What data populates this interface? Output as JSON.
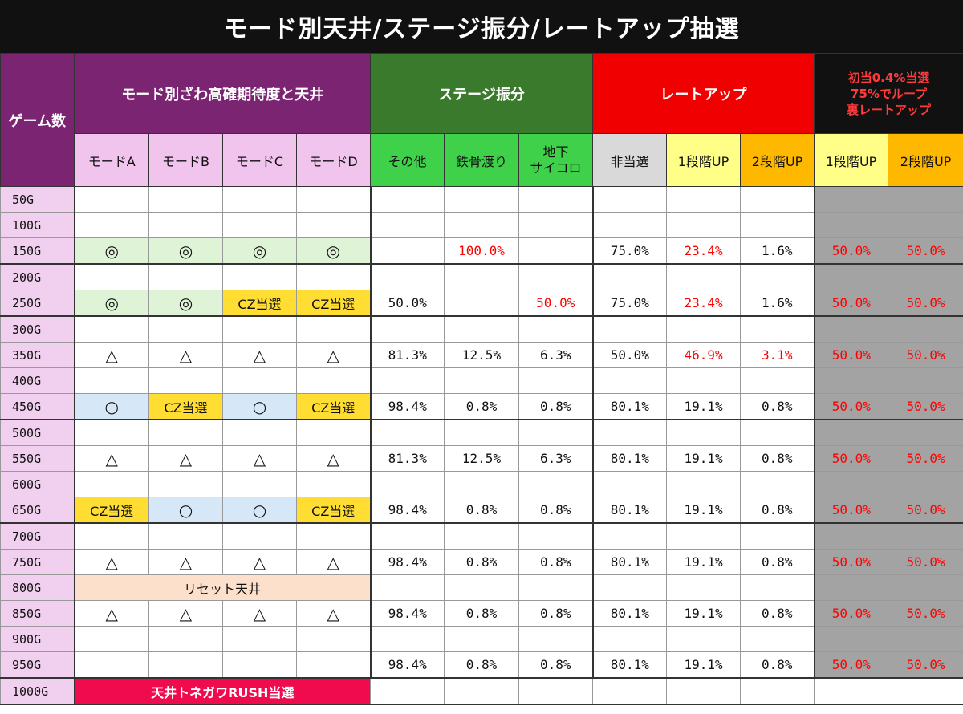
{
  "title": "モード別天井/ステージ振分/レートアップ抽選",
  "headers": {
    "games": "ゲーム数",
    "mode_group": "モード別ざわ高確期待度と天井",
    "stage_group": "ステージ振分",
    "rate_group": "レートアップ",
    "ura_group_line1": "初当0.4%当選",
    "ura_group_line2": "75%でループ",
    "ura_group_line3": "裏レートアップ",
    "mode_a": "モードA",
    "mode_b": "モードB",
    "mode_c": "モードC",
    "mode_d": "モードD",
    "stage_other": "その他",
    "stage_tekkotsu": "鉄骨渡り",
    "stage_chika_l1": "地下",
    "stage_chika_l2": "サイコロ",
    "rate_none": "非当選",
    "rate_1up": "1段階UP",
    "rate_2up": "2段階UP",
    "ura_1up": "1段階UP",
    "ura_2up": "2段階UP"
  },
  "rows": [
    {
      "g": "50G"
    },
    {
      "g": "100G"
    },
    {
      "g": "150G",
      "a": "◎",
      "b": "◎",
      "c": "◎",
      "d": "◎",
      "s1": "",
      "s2": "100.0%",
      "s3": "",
      "r0": "75.0%",
      "r1": "23.4%",
      "r2": "1.6%",
      "u1": "50.0%",
      "u2": "50.0%"
    },
    {
      "g": "200G"
    },
    {
      "g": "250G",
      "a": "◎",
      "b": "◎",
      "c": "CZ当選",
      "d": "CZ当選",
      "s1": "50.0%",
      "s2": "",
      "s3": "50.0%",
      "r0": "75.0%",
      "r1": "23.4%",
      "r2": "1.6%",
      "u1": "50.0%",
      "u2": "50.0%"
    },
    {
      "g": "300G"
    },
    {
      "g": "350G",
      "a": "△",
      "b": "△",
      "c": "△",
      "d": "△",
      "s1": "81.3%",
      "s2": "12.5%",
      "s3": "6.3%",
      "r0": "50.0%",
      "r1": "46.9%",
      "r2": "3.1%",
      "u1": "50.0%",
      "u2": "50.0%"
    },
    {
      "g": "400G"
    },
    {
      "g": "450G",
      "a": "○",
      "b": "CZ当選",
      "c": "○",
      "d": "CZ当選",
      "s1": "98.4%",
      "s2": "0.8%",
      "s3": "0.8%",
      "r0": "80.1%",
      "r1": "19.1%",
      "r2": "0.8%",
      "u1": "50.0%",
      "u2": "50.0%"
    },
    {
      "g": "500G"
    },
    {
      "g": "550G",
      "a": "△",
      "b": "△",
      "c": "△",
      "d": "△",
      "s1": "81.3%",
      "s2": "12.5%",
      "s3": "6.3%",
      "r0": "80.1%",
      "r1": "19.1%",
      "r2": "0.8%",
      "u1": "50.0%",
      "u2": "50.0%"
    },
    {
      "g": "600G"
    },
    {
      "g": "650G",
      "a": "CZ当選",
      "b": "○",
      "c": "○",
      "d": "CZ当選",
      "s1": "98.4%",
      "s2": "0.8%",
      "s3": "0.8%",
      "r0": "80.1%",
      "r1": "19.1%",
      "r2": "0.8%",
      "u1": "50.0%",
      "u2": "50.0%"
    },
    {
      "g": "700G"
    },
    {
      "g": "750G",
      "a": "△",
      "b": "△",
      "c": "△",
      "d": "△",
      "s1": "98.4%",
      "s2": "0.8%",
      "s3": "0.8%",
      "r0": "80.1%",
      "r1": "19.1%",
      "r2": "0.8%",
      "u1": "50.0%",
      "u2": "50.0%"
    },
    {
      "g": "800G",
      "reset": "リセット天井"
    },
    {
      "g": "850G",
      "a": "△",
      "b": "△",
      "c": "△",
      "d": "△",
      "s1": "98.4%",
      "s2": "0.8%",
      "s3": "0.8%",
      "r0": "80.1%",
      "r1": "19.1%",
      "r2": "0.8%",
      "u1": "50.0%",
      "u2": "50.0%"
    },
    {
      "g": "900G"
    },
    {
      "g": "950G",
      "s1": "98.4%",
      "s2": "0.8%",
      "s3": "0.8%",
      "r0": "80.1%",
      "r1": "19.1%",
      "r2": "0.8%",
      "u1": "50.0%",
      "u2": "50.0%"
    },
    {
      "g": "1000G",
      "rush": "天井トネガワRUSH当選"
    }
  ]
}
